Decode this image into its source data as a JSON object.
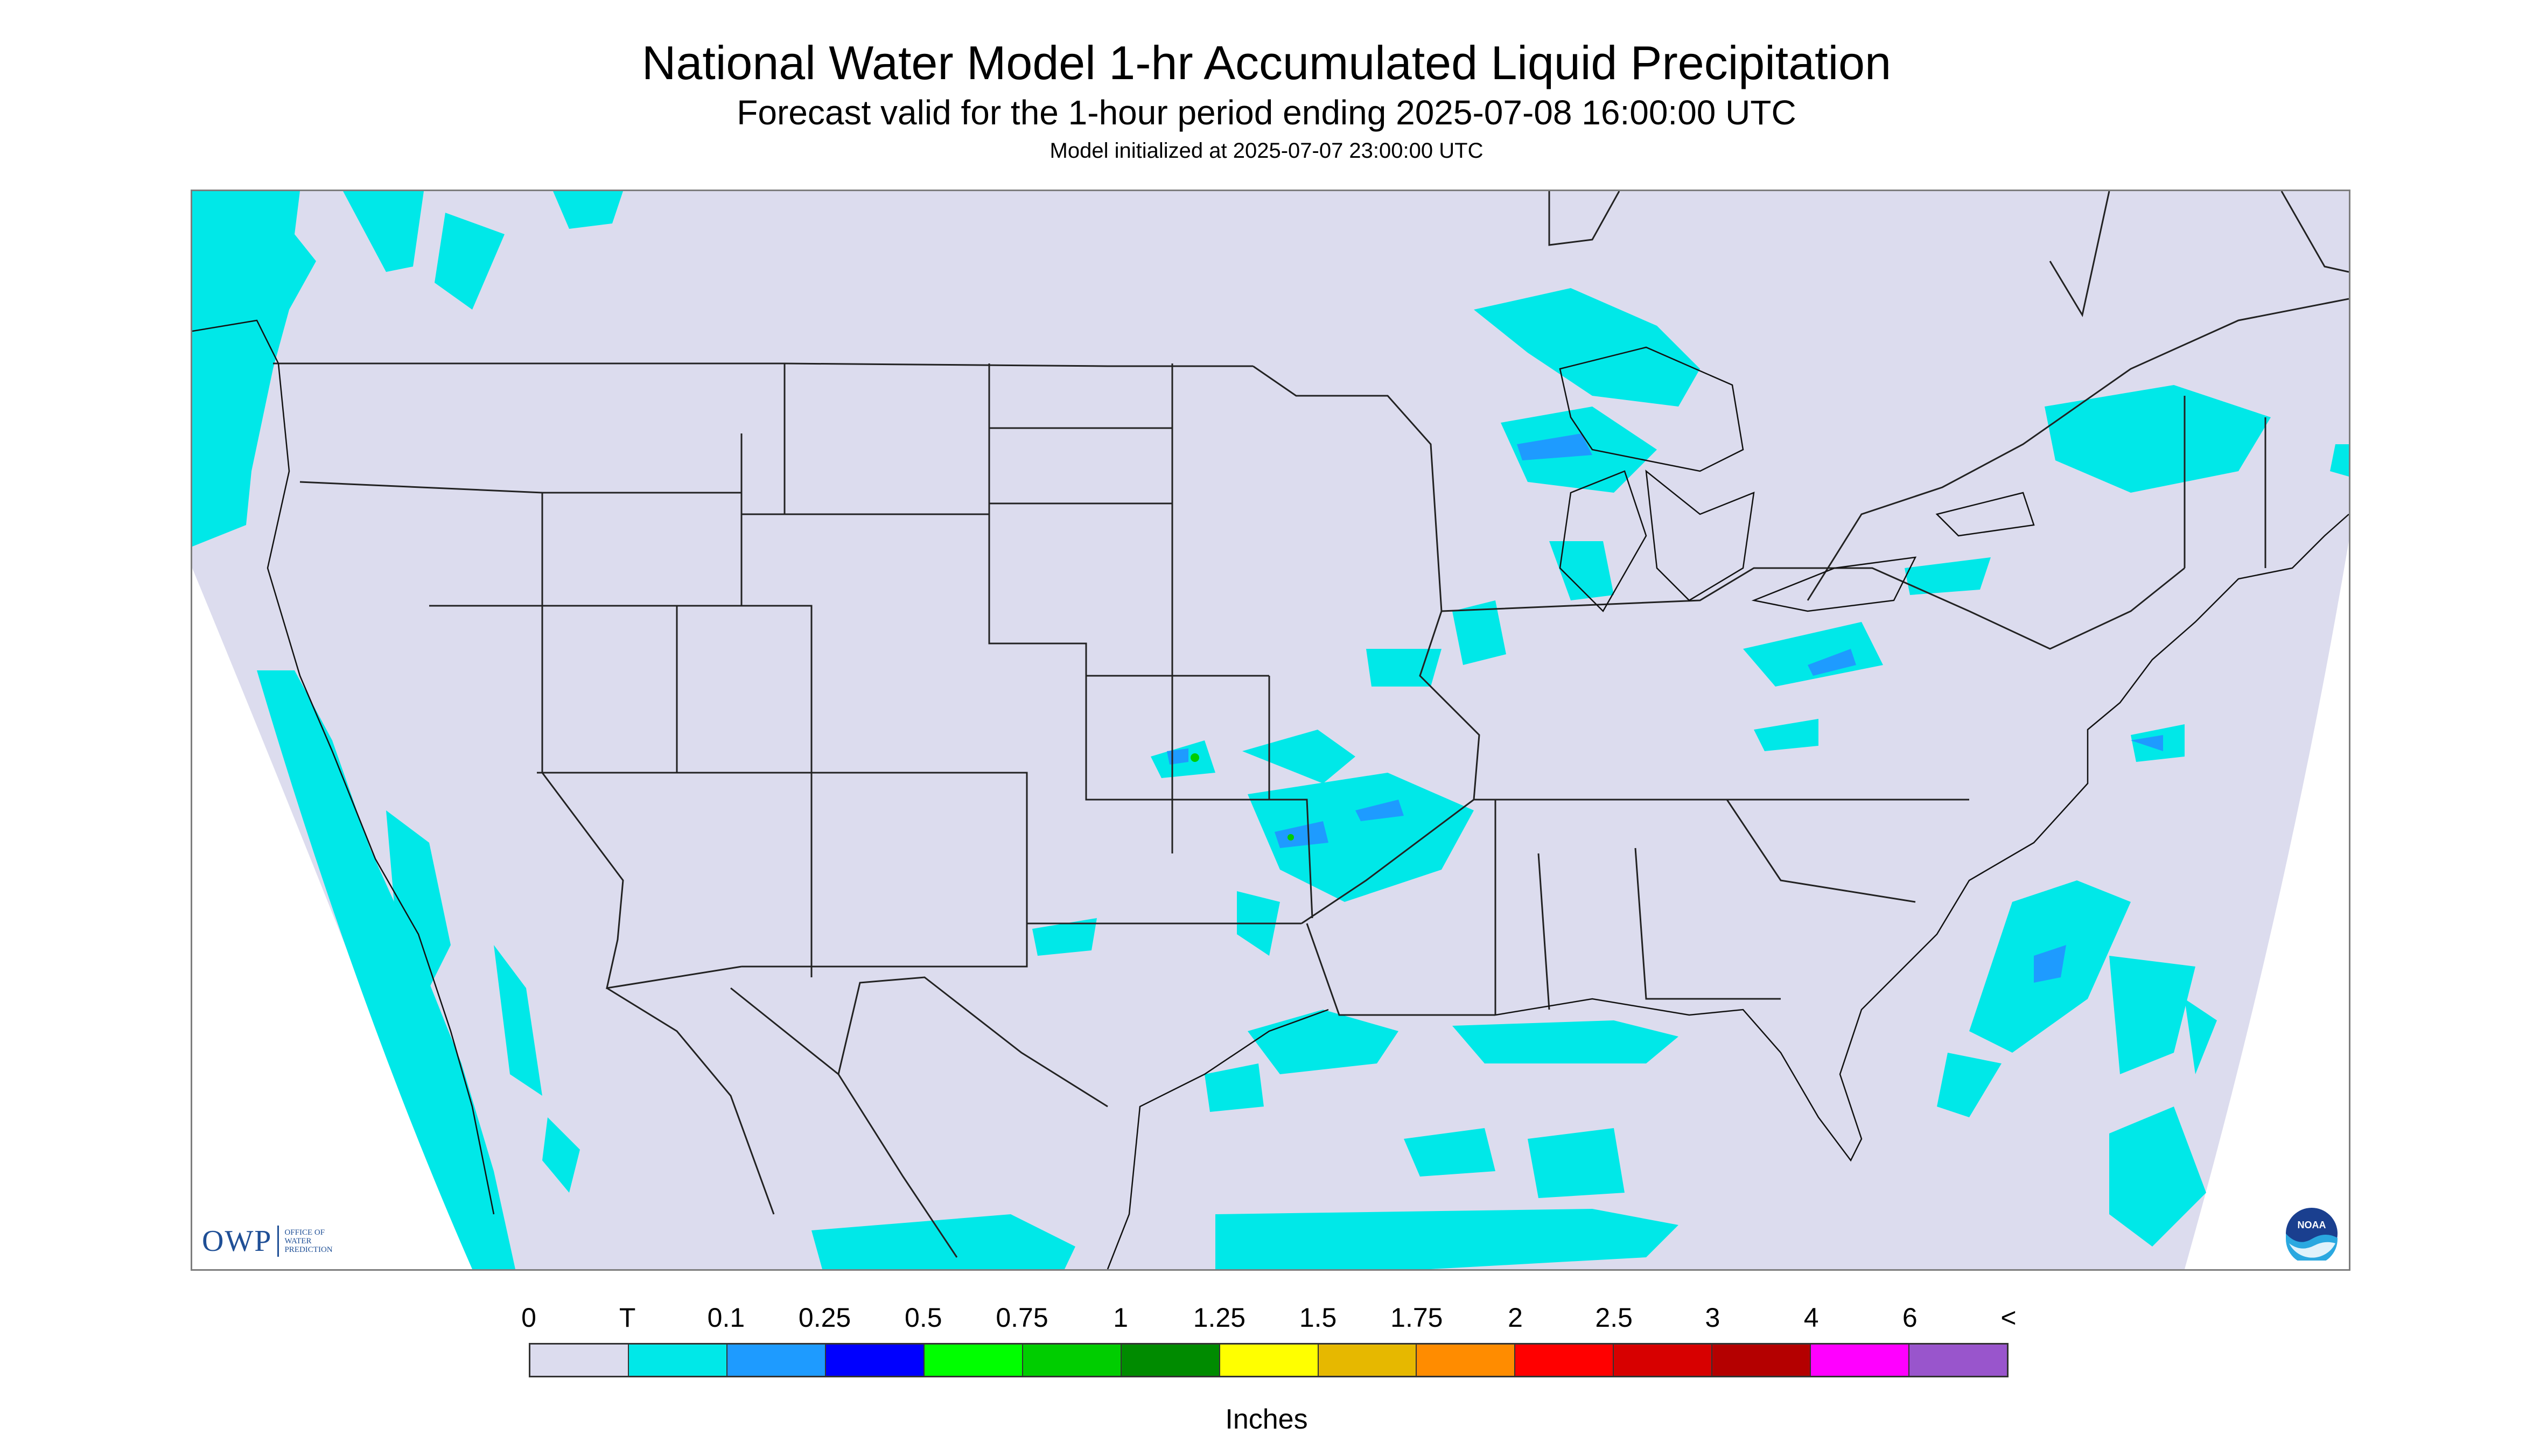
{
  "title": "National Water Model 1-hr Accumulated Liquid Precipitation",
  "subtitle": "Forecast valid for the 1-hour period ending 2025-07-08 16:00:00 UTC",
  "init_line": "Model initialized at 2025-07-07 23:00:00 UTC",
  "legend": {
    "labels": [
      "0",
      "T",
      "0.1",
      "0.25",
      "0.5",
      "0.75",
      "1",
      "1.25",
      "1.5",
      "1.75",
      "2",
      "2.5",
      "3",
      "4",
      "6",
      "<"
    ],
    "colors": [
      "#dcdcee",
      "#00e8e8",
      "#1e9bff",
      "#0000ff",
      "#00ff00",
      "#00cd00",
      "#008b00",
      "#ffff00",
      "#e6b800",
      "#ff8c00",
      "#ff0000",
      "#d70000",
      "#b40000",
      "#ff00ff",
      "#9955cc"
    ],
    "unit": "Inches"
  },
  "logos": {
    "owp": {
      "text": "OWP",
      "subtext_lines": [
        "OFFICE OF",
        "WATER",
        "PREDICTION"
      ]
    },
    "noaa": {
      "text": "NOAA"
    }
  },
  "colors": {
    "map_background": "#dcdcee",
    "trace": "#00e8e8",
    "light_rain": "#1e9bff",
    "border": "#222222"
  }
}
